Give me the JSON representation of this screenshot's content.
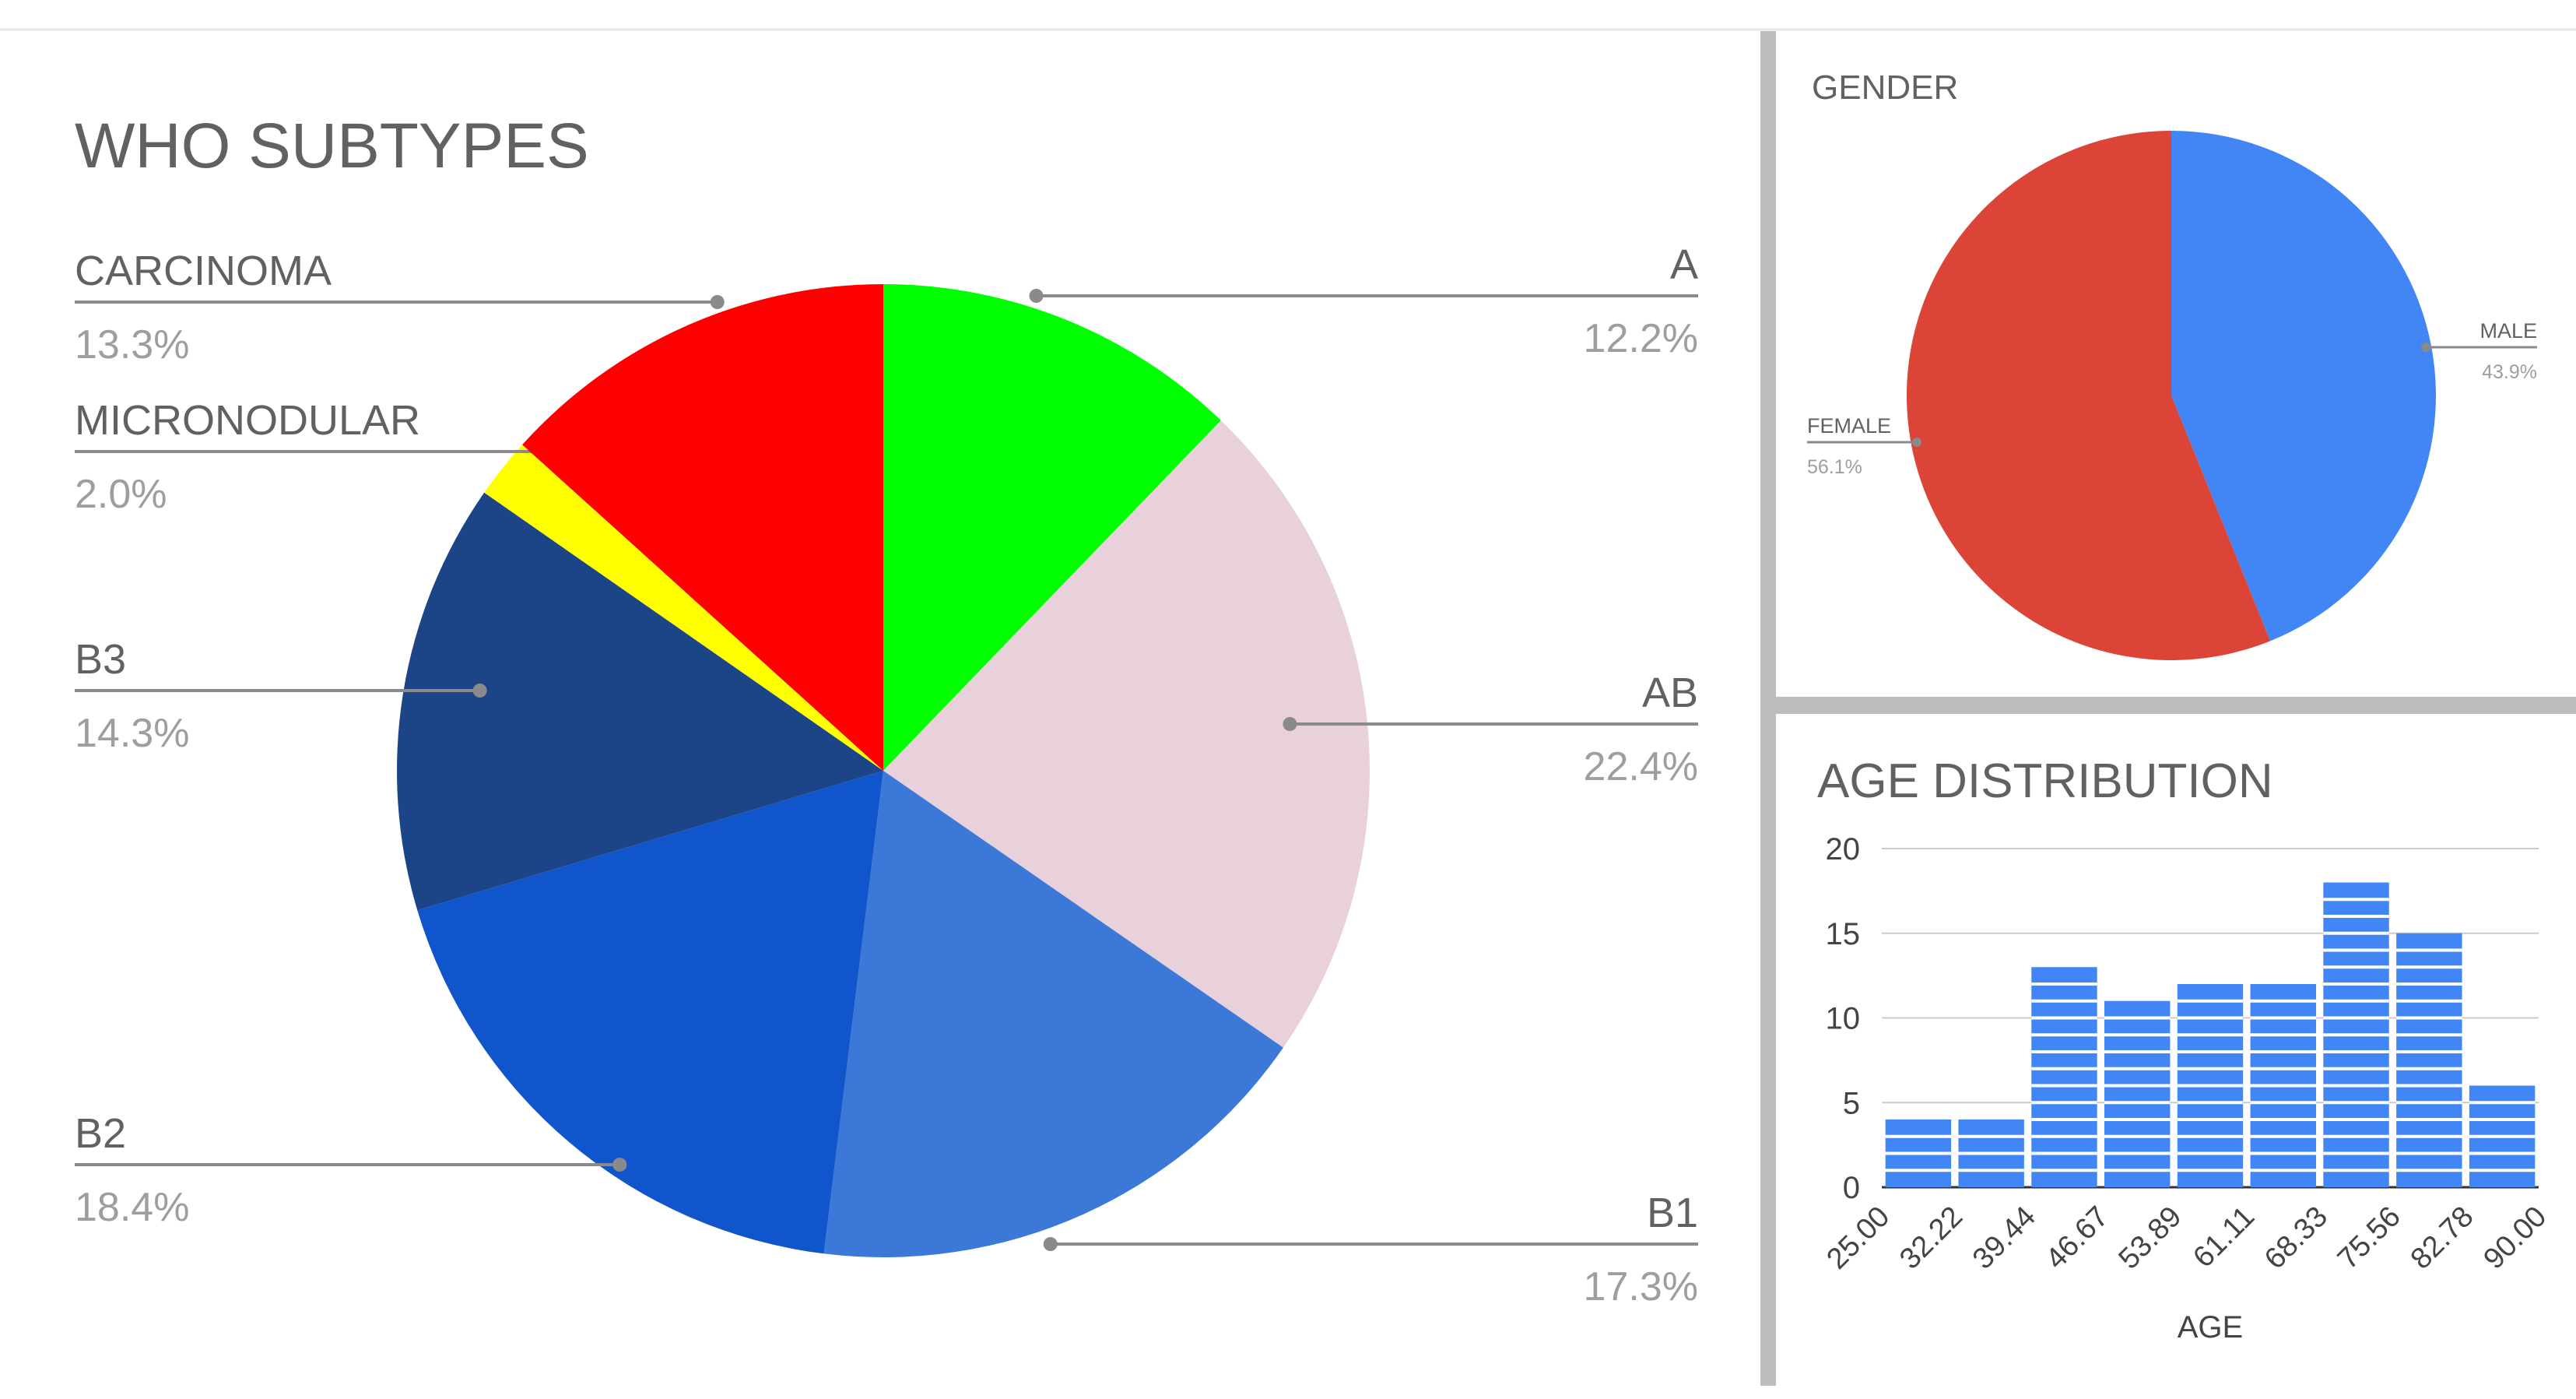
{
  "chart_data": [
    {
      "type": "pie",
      "title": "WHO SUBTYPES",
      "slices": [
        {
          "label": "A",
          "value": 12.2,
          "value_label": "12.2%",
          "color": "#00ff00"
        },
        {
          "label": "AB",
          "value": 22.4,
          "value_label": "22.4%",
          "color": "#e9d1dc"
        },
        {
          "label": "B1",
          "value": 17.3,
          "value_label": "17.3%",
          "color": "#3c78d8"
        },
        {
          "label": "B2",
          "value": 18.4,
          "value_label": "18.4%",
          "color": "#1155cc"
        },
        {
          "label": "B3",
          "value": 14.3,
          "value_label": "14.3%",
          "color": "#1c4587"
        },
        {
          "label": "MICRONODULAR",
          "value": 2.0,
          "value_label": "2.0%",
          "color": "#ffff00"
        },
        {
          "label": "CARCINOMA",
          "value": 13.3,
          "value_label": "13.3%",
          "color": "#ff0000"
        }
      ]
    },
    {
      "type": "pie",
      "title": "GENDER",
      "slices": [
        {
          "label": "MALE",
          "value": 43.9,
          "value_label": "43.9%",
          "color": "#4285f4"
        },
        {
          "label": "FEMALE",
          "value": 56.1,
          "value_label": "56.1%",
          "color": "#db4437"
        }
      ]
    },
    {
      "type": "bar",
      "title": "AGE DISTRIBUTION",
      "xlabel": "AGE",
      "ylabel": "",
      "ylim": [
        0,
        20
      ],
      "yticks": [
        "0",
        "5",
        "10",
        "15",
        "20"
      ],
      "xticks": [
        "25.00",
        "32.22",
        "39.44",
        "46.67",
        "53.89",
        "61.11",
        "68.33",
        "75.56",
        "82.78",
        "90.00"
      ],
      "values": [
        4,
        4,
        13,
        11,
        12,
        12,
        18,
        15,
        6
      ],
      "color": "#4285f4",
      "grid": true
    }
  ]
}
